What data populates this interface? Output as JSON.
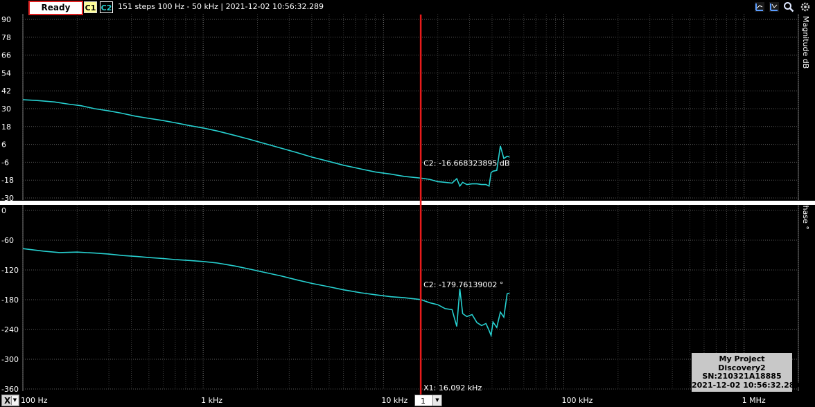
{
  "toolbar": {
    "status": "Ready",
    "c1_label": "C1",
    "c2_label": "C2",
    "info": "151 steps  100 Hz - 50 kHz | 2021-12-02 10:56:32.289",
    "icons": [
      "axis-x-icon",
      "axis-y-icon",
      "zoom-icon",
      "settings-icon"
    ]
  },
  "colors": {
    "trace": "#27d1d1",
    "cursor": "#e81b1b",
    "grid": "#5a5a5a",
    "background": "#000000"
  },
  "footer": {
    "axis_select": "X",
    "zoom_value": "1",
    "cursor_readout": "X1: 16.092 kHz"
  },
  "watermark": {
    "line1": "My Project",
    "line2": "Discovery2",
    "line3": "SN:210321A18885",
    "line4": "2021-12-02 10:56:32.289"
  },
  "chart_data": [
    {
      "type": "line",
      "ylabel": "Magnitude dB",
      "x_scale": "log",
      "xlim": [
        100,
        2000000
      ],
      "ylim": [
        -30,
        90
      ],
      "y_ticks": [
        90,
        78,
        66,
        54,
        42,
        30,
        18,
        6,
        -6,
        -18,
        -30
      ],
      "x_ticks": [
        {
          "value": 100,
          "label": "100 Hz"
        },
        {
          "value": 1000,
          "label": "1 kHz"
        },
        {
          "value": 10000,
          "label": "10 kHz"
        },
        {
          "value": 100000,
          "label": "100 kHz"
        },
        {
          "value": 1000000,
          "label": "1 MHz"
        }
      ],
      "cursor_x": 16092,
      "cursor_label": "C2: -16.668323895 dB",
      "series": [
        {
          "x": [
            100,
            120,
            150,
            180,
            210,
            250,
            300,
            350,
            420,
            500,
            600,
            700,
            850,
            1000,
            1200,
            1500,
            1800,
            2200,
            2700,
            3300,
            4000,
            5000,
            6000,
            7500,
            9000,
            11000,
            13000,
            16092,
            18000,
            20000,
            22000,
            24000,
            25500,
            26500,
            27500,
            29000,
            31000,
            33000,
            35000,
            37000,
            38500,
            39500,
            40500,
            42500,
            44500,
            46500,
            48500,
            50000
          ],
          "y": [
            36,
            35.5,
            34.5,
            33,
            32,
            30,
            28.5,
            27,
            25,
            23.5,
            22,
            20.5,
            18.5,
            17,
            15,
            12,
            9.5,
            6.5,
            3.5,
            0.5,
            -2.5,
            -5.5,
            -8,
            -10.5,
            -12.5,
            -14,
            -15.5,
            -16.67,
            -17.5,
            -19,
            -19.5,
            -20,
            -17,
            -22,
            -19.5,
            -21,
            -20.5,
            -20.5,
            -21,
            -21,
            -22,
            -13,
            -12,
            -11.5,
            5,
            -3.5,
            -2,
            -2.5
          ]
        }
      ]
    },
    {
      "type": "line",
      "ylabel": "Phase °",
      "x_scale": "log",
      "xlim": [
        100,
        2000000
      ],
      "ylim": [
        -360,
        0
      ],
      "y_ticks": [
        0,
        -60,
        -120,
        -180,
        -240,
        -300,
        -360
      ],
      "x_ticks": [
        {
          "value": 100,
          "label": "100 Hz"
        },
        {
          "value": 1000,
          "label": "1 kHz"
        },
        {
          "value": 10000,
          "label": "10 kHz"
        },
        {
          "value": 100000,
          "label": "100 kHz"
        },
        {
          "value": 1000000,
          "label": "1 MHz"
        }
      ],
      "cursor_x": 16092,
      "cursor_label": "C2: -179.76139002 °",
      "series": [
        {
          "x": [
            100,
            130,
            160,
            200,
            250,
            300,
            360,
            430,
            500,
            600,
            700,
            850,
            1000,
            1200,
            1500,
            1800,
            2200,
            2700,
            3300,
            4000,
            5000,
            6000,
            7500,
            9000,
            11000,
            13000,
            16092,
            18000,
            20000,
            22000,
            24000,
            25500,
            26500,
            27500,
            29000,
            31000,
            33000,
            35000,
            37000,
            38500,
            39500,
            40500,
            42500,
            44500,
            46500,
            48500,
            50000
          ],
          "y": [
            -77,
            -82,
            -85,
            -84,
            -86,
            -88,
            -91,
            -93,
            -95,
            -97,
            -99,
            -101,
            -103,
            -106,
            -112,
            -118,
            -125,
            -132,
            -140,
            -147,
            -154,
            -160,
            -166,
            -170,
            -174,
            -176,
            -179.76,
            -186,
            -190,
            -198,
            -200,
            -234,
            -158,
            -208,
            -214,
            -210,
            -226,
            -232,
            -228,
            -242,
            -252,
            -225,
            -236,
            -205,
            -215,
            -168,
            -167
          ]
        }
      ]
    }
  ]
}
